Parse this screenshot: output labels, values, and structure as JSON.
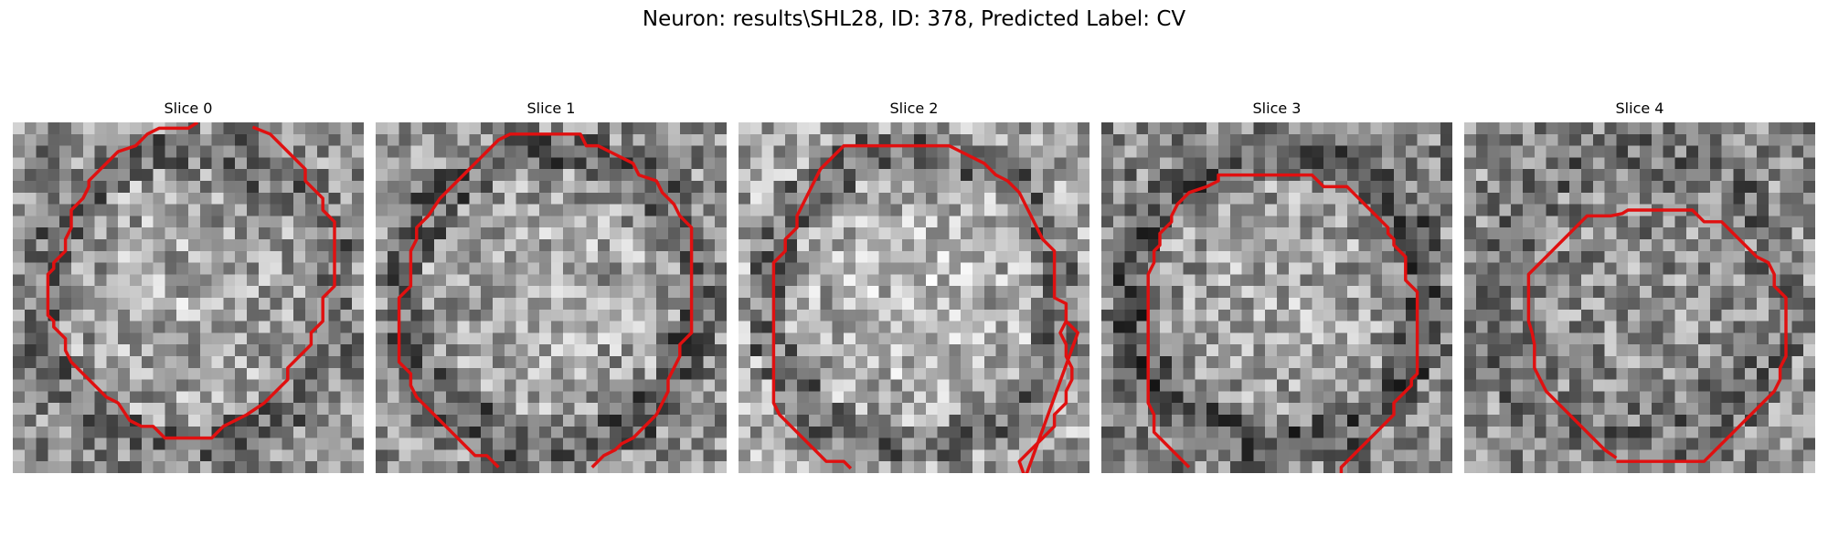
{
  "figure": {
    "title": "Neuron: results\\SHL28, ID: 378, Predicted Label: CV"
  },
  "contour_color": "#e01010",
  "slices": [
    {
      "label": "Slice 0",
      "seed": 11,
      "center_brightness": 0.7,
      "ring_darkness": 0.45,
      "edge_brightness": 0.55
    },
    {
      "label": "Slice 1",
      "seed": 23,
      "center_brightness": 0.7,
      "ring_darkness": 0.4,
      "edge_brightness": 0.55
    },
    {
      "label": "Slice 2",
      "seed": 37,
      "center_brightness": 0.75,
      "ring_darkness": 0.45,
      "edge_brightness": 0.65
    },
    {
      "label": "Slice 3",
      "seed": 41,
      "center_brightness": 0.68,
      "ring_darkness": 0.35,
      "edge_brightness": 0.52
    },
    {
      "label": "Slice 4",
      "seed": 53,
      "center_brightness": 0.6,
      "ring_darkness": 0.45,
      "edge_brightness": 0.55
    }
  ]
}
